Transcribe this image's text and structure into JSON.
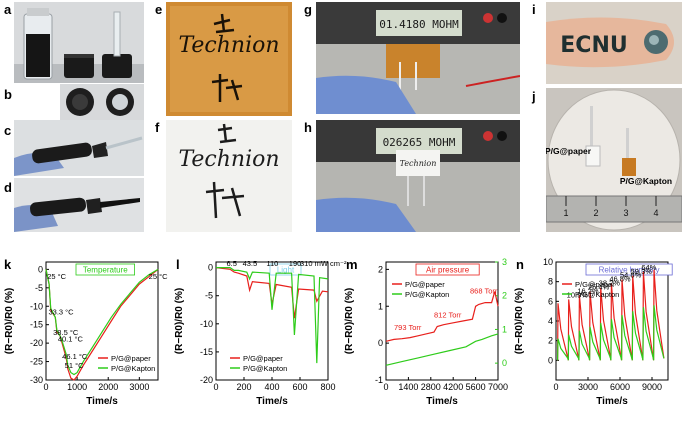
{
  "panel_letters": {
    "a": "a",
    "b": "b",
    "c": "c",
    "d": "d",
    "e": "e",
    "f": "f",
    "g": "g",
    "h": "h",
    "i": "i",
    "j": "j",
    "k": "k",
    "l": "l",
    "m": "m",
    "n": "n"
  },
  "photos": {
    "e_text": "Technion",
    "f_text": "Technion",
    "g_display": "01.4180  MOHM",
    "h_display": "026265  MOHM",
    "h_card_text": "Technion",
    "i_text": "ECNU",
    "j_label_paper": "P/G@paper",
    "j_label_kapton": "P/G@Kapton",
    "j_ruler": [
      "1",
      "2",
      "3",
      "4"
    ]
  },
  "colors": {
    "paper_series": "#e8201c",
    "kapton_series": "#2ecc1a",
    "temperature_title": "#2ecc1a",
    "light_title": "#7fd0e8",
    "pressure_title": "#e8201c",
    "humidity_title": "#6b6bd6"
  },
  "chart_data": [
    {
      "id": "k",
      "type": "line",
      "title": "Temperature",
      "xlabel": "Time/s",
      "ylabel": "(R−R0)/R0 (%)",
      "xlim": [
        0,
        3600
      ],
      "ylim": [
        -30,
        2
      ],
      "xticks": [
        0,
        1000,
        2000,
        3000
      ],
      "yticks": [
        0,
        -5,
        -10,
        -15,
        -20,
        -25,
        -30
      ],
      "legend_loc": "lower-right",
      "annotations": [
        {
          "text": "25 °C",
          "x": 40,
          "y": -2.6
        },
        {
          "text": "33.3 °C",
          "x": 80,
          "y": -12.3
        },
        {
          "text": "38.5 °C",
          "x": 230,
          "y": -17.8
        },
        {
          "text": "40.1 °C",
          "x": 380,
          "y": -19.6
        },
        {
          "text": "46.1 °C",
          "x": 520,
          "y": -24.3
        },
        {
          "text": "51 °C",
          "x": 600,
          "y": -26.8
        },
        {
          "text": "25 °C",
          "x": 3300,
          "y": -2.6
        }
      ],
      "series": [
        {
          "name": "P/G@paper",
          "x": [
            0,
            100,
            150,
            300,
            350,
            450,
            500,
            650,
            700,
            800,
            900,
            1000,
            1200,
            1500,
            1800,
            2100,
            2400,
            2700,
            3000,
            3300,
            3600
          ],
          "values": [
            0,
            -4,
            -11,
            -13,
            -17,
            -18,
            -19.5,
            -24,
            -27,
            -29.5,
            -30,
            -29,
            -26,
            -22,
            -18,
            -14,
            -10,
            -7,
            -4,
            -2,
            0
          ]
        },
        {
          "name": "P/G@Kapton",
          "x": [
            0,
            100,
            150,
            300,
            350,
            450,
            500,
            650,
            700,
            800,
            900,
            1000,
            1200,
            1500,
            1800,
            2100,
            2400,
            2700,
            3000,
            3300,
            3600
          ],
          "values": [
            0,
            -4,
            -10.5,
            -13,
            -16.5,
            -18,
            -19,
            -23,
            -26,
            -28,
            -28.5,
            -28,
            -25,
            -21,
            -17,
            -13,
            -9.5,
            -6.5,
            -3.5,
            -1.5,
            0
          ]
        }
      ]
    },
    {
      "id": "l",
      "type": "line",
      "title": "Light",
      "xlabel": "Time/s",
      "ylabel": "(R−R0)/R0 (%)",
      "xlim": [
        0,
        800
      ],
      "ylim": [
        -20,
        1
      ],
      "xticks": [
        0,
        200,
        400,
        600,
        800
      ],
      "yticks": [
        0,
        -5,
        -10,
        -15,
        -20
      ],
      "legend_loc": "lower-center",
      "annotations": [
        {
          "text": "6.5",
          "x": 75,
          "y": 0.3
        },
        {
          "text": "43.5",
          "x": 190,
          "y": 0.3
        },
        {
          "text": "110",
          "x": 360,
          "y": 0.3
        },
        {
          "text": "190",
          "x": 520,
          "y": 0.3
        },
        {
          "text": "310 mW cm⁻²",
          "x": 600,
          "y": 0.3
        }
      ],
      "series": [
        {
          "name": "P/G@paper",
          "x": [
            0,
            100,
            130,
            160,
            220,
            240,
            260,
            380,
            400,
            430,
            540,
            560,
            590,
            700,
            720,
            760,
            800
          ],
          "values": [
            0,
            -0.3,
            -0.8,
            -1,
            -1.5,
            -4,
            -2.5,
            -2.8,
            -6.5,
            -3,
            -3.5,
            -9,
            -3.8,
            -4,
            -6,
            -4.2,
            -4.3
          ]
        },
        {
          "name": "P/G@Kapton",
          "x": [
            0,
            100,
            130,
            160,
            220,
            240,
            260,
            380,
            400,
            430,
            540,
            560,
            590,
            700,
            720,
            740,
            800
          ],
          "values": [
            0,
            0,
            -0.5,
            -0.5,
            -0.8,
            -2,
            -0.8,
            -1,
            -7.5,
            -1,
            -1,
            -12,
            -1.2,
            -1.5,
            -17,
            -1.8,
            -2
          ]
        }
      ]
    },
    {
      "id": "m",
      "type": "line",
      "title": "Air pressure",
      "xlabel": "Time/s",
      "ylabel": "(R−R0)/R0 (%)",
      "xlim": [
        0,
        7000
      ],
      "ylim": [
        -1,
        2.2
      ],
      "ylim_right": [
        -0.5,
        3
      ],
      "xticks": [
        0,
        1400,
        2800,
        4200,
        5600,
        7000
      ],
      "yticks": [
        -1,
        0,
        1,
        2
      ],
      "yticks_right": [
        0,
        1,
        2,
        3
      ],
      "legend_loc": "upper-left",
      "annotations": [
        {
          "text": "793 Torr",
          "x": 500,
          "y": 0.35
        },
        {
          "text": "812 Torr",
          "x": 3000,
          "y": 0.7
        },
        {
          "text": "868 Torr",
          "x": 5250,
          "y": 1.35
        }
      ],
      "series": [
        {
          "name": "P/G@paper",
          "x": [
            0,
            500,
            1000,
            1500,
            2000,
            2500,
            3000,
            3200,
            3600,
            4200,
            4800,
            5400,
            5600,
            5800,
            6200,
            6600,
            6800,
            7000
          ],
          "values": [
            0.05,
            0.1,
            0.12,
            0.15,
            0.2,
            0.25,
            0.3,
            0.45,
            0.5,
            0.55,
            0.6,
            0.65,
            1.0,
            1.05,
            1.1,
            1.1,
            1.4,
            1.0
          ]
        },
        {
          "name": "P/G@Kapton",
          "x": [
            0,
            1000,
            2000,
            3000,
            4000,
            5000,
            5600,
            6000,
            6600,
            7000
          ],
          "values": [
            -0.6,
            -0.5,
            -0.4,
            -0.3,
            -0.2,
            -0.1,
            0.05,
            0.1,
            0.2,
            0.25
          ]
        }
      ]
    },
    {
      "id": "n",
      "type": "line",
      "title": "Relative humidity",
      "xlabel": "Time/s",
      "ylabel": "(R−R0)/R0 (%)",
      "xlim": [
        0,
        10500
      ],
      "ylim": [
        -2,
        10
      ],
      "xticks": [
        0,
        3000,
        6000,
        9000
      ],
      "yticks": [
        0,
        2,
        4,
        6,
        8,
        10
      ],
      "legend_loc": "upper-left",
      "annotations": [
        {
          "text": "10.9%",
          "x": 1000,
          "y": 6.4
        },
        {
          "text": "16.2%",
          "x": 2000,
          "y": 6.8
        },
        {
          "text": "25.4%",
          "x": 3000,
          "y": 7.2
        },
        {
          "text": "38.2%",
          "x": 4000,
          "y": 7.6
        },
        {
          "text": "46.8%",
          "x": 5000,
          "y": 8.0
        },
        {
          "text": "54.8%",
          "x": 6000,
          "y": 8.4
        },
        {
          "text": "59.3%",
          "x": 7000,
          "y": 8.8
        },
        {
          "text": "64%",
          "x": 8000,
          "y": 9.2
        }
      ],
      "series": [
        {
          "name": "P/G@paper",
          "peaks": [
            5.8,
            6.2,
            6.6,
            7.0,
            7.4,
            7.8,
            8.2,
            8.6,
            9.0,
            9.2
          ],
          "base": 0,
          "period": 1000
        },
        {
          "name": "P/G@Kapton",
          "peaks": [
            2.2,
            2.6,
            3.0,
            3.4,
            3.8,
            4.2,
            4.6,
            5.0,
            5.4,
            5.6
          ],
          "base": 0,
          "period": 1000
        }
      ]
    }
  ]
}
